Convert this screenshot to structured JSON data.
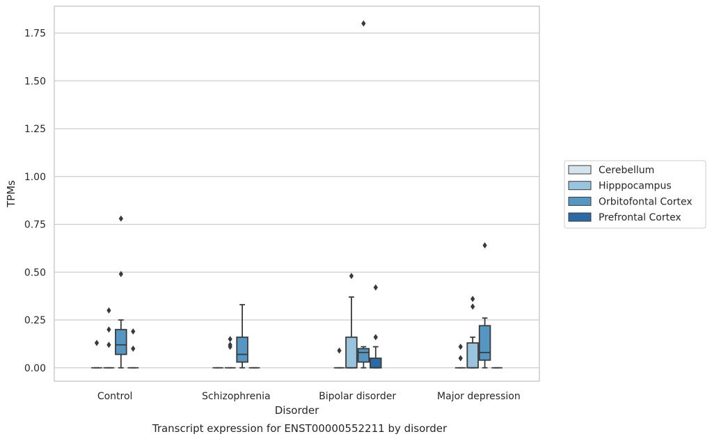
{
  "chart_data": {
    "type": "box",
    "title": "",
    "caption": "Transcript expression for ENST00000552211 by disorder",
    "xlabel": "Disorder",
    "ylabel": "TPMs",
    "ylim": [
      -0.07,
      1.89
    ],
    "yticks": [
      0.0,
      0.25,
      0.5,
      0.75,
      1.0,
      1.25,
      1.5,
      1.75
    ],
    "ytick_labels": [
      "0.00",
      "0.25",
      "0.50",
      "0.75",
      "1.00",
      "1.25",
      "1.50",
      "1.75"
    ],
    "categories": [
      "Control",
      "Schizophrenia",
      "Bipolar disorder",
      "Major depression"
    ],
    "grid": "horizontal",
    "legend_position": "right",
    "series": [
      {
        "name": "Cerebellum",
        "color": "#d5e3ee",
        "boxes": [
          {
            "q1": 0,
            "median": 0,
            "q3": 0,
            "whisker_low": 0,
            "whisker_high": 0,
            "outliers": [
              0.13
            ]
          },
          {
            "q1": 0,
            "median": 0,
            "q3": 0,
            "whisker_low": 0,
            "whisker_high": 0,
            "outliers": []
          },
          {
            "q1": 0,
            "median": 0,
            "q3": 0,
            "whisker_low": 0,
            "whisker_high": 0,
            "outliers": [
              0.09
            ]
          },
          {
            "q1": 0,
            "median": 0,
            "q3": 0,
            "whisker_low": 0,
            "whisker_high": 0,
            "outliers": [
              0.05,
              0.11
            ]
          }
        ]
      },
      {
        "name": "Hipppocampus",
        "color": "#9ac3dd",
        "boxes": [
          {
            "q1": 0,
            "median": 0,
            "q3": 0,
            "whisker_low": 0,
            "whisker_high": 0,
            "outliers": [
              0.12,
              0.2,
              0.3
            ]
          },
          {
            "q1": 0,
            "median": 0,
            "q3": 0,
            "whisker_low": 0,
            "whisker_high": 0,
            "outliers": [
              0.11,
              0.12,
              0.15
            ]
          },
          {
            "q1": 0,
            "median": 0,
            "q3": 0.16,
            "whisker_low": 0,
            "whisker_high": 0.37,
            "outliers": [
              0.48
            ]
          },
          {
            "q1": 0,
            "median": 0,
            "q3": 0.13,
            "whisker_low": 0,
            "whisker_high": 0.16,
            "outliers": [
              0.32,
              0.36
            ]
          }
        ]
      },
      {
        "name": "Orbitofontal Cortex",
        "color": "#5597c2",
        "boxes": [
          {
            "q1": 0.07,
            "median": 0.12,
            "q3": 0.2,
            "whisker_low": 0,
            "whisker_high": 0.25,
            "outliers": [
              0.49,
              0.78
            ]
          },
          {
            "q1": 0.03,
            "median": 0.07,
            "q3": 0.16,
            "whisker_low": 0,
            "whisker_high": 0.33,
            "outliers": []
          },
          {
            "q1": 0.03,
            "median": 0.08,
            "q3": 0.1,
            "whisker_low": 0,
            "whisker_high": 0.11,
            "outliers": [
              1.8
            ]
          },
          {
            "q1": 0.04,
            "median": 0.08,
            "q3": 0.22,
            "whisker_low": 0,
            "whisker_high": 0.26,
            "outliers": [
              0.64
            ]
          }
        ]
      },
      {
        "name": "Prefrontal Cortex",
        "color": "#2c6aa5",
        "boxes": [
          {
            "q1": 0,
            "median": 0,
            "q3": 0,
            "whisker_low": 0,
            "whisker_high": 0,
            "outliers": [
              0.1,
              0.19
            ]
          },
          {
            "q1": 0,
            "median": 0,
            "q3": 0,
            "whisker_low": 0,
            "whisker_high": 0,
            "outliers": []
          },
          {
            "q1": 0,
            "median": 0,
            "q3": 0.05,
            "whisker_low": 0,
            "whisker_high": 0.11,
            "outliers": [
              0.16,
              0.42
            ]
          },
          {
            "q1": 0,
            "median": 0,
            "q3": 0,
            "whisker_low": 0,
            "whisker_high": 0,
            "outliers": []
          }
        ]
      }
    ]
  }
}
